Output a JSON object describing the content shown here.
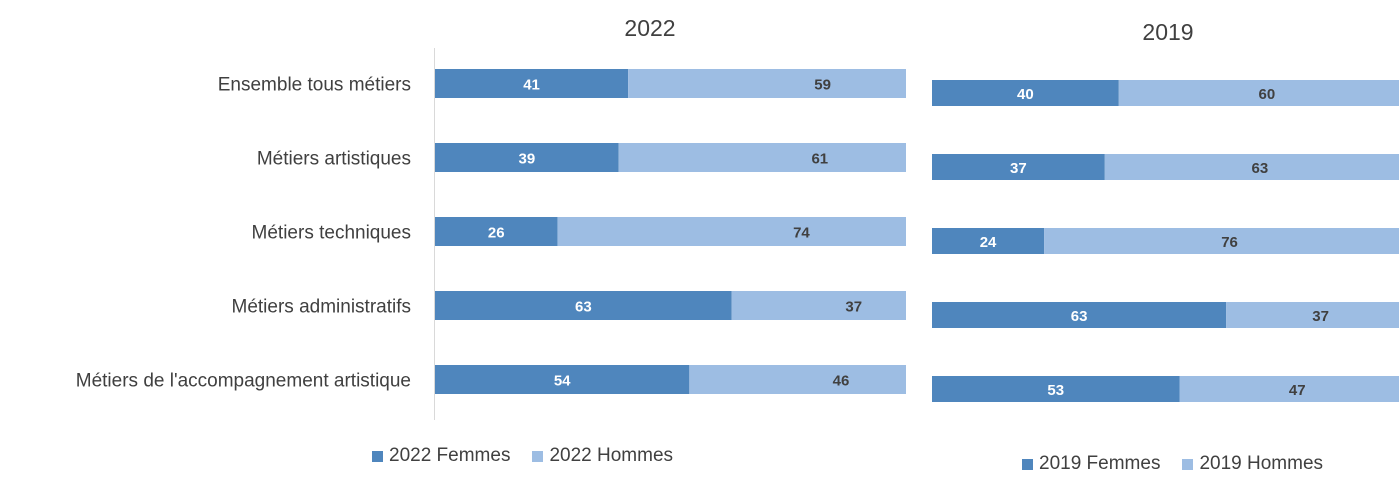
{
  "chart_data": [
    {
      "type": "bar",
      "orientation": "horizontal",
      "stacked": true,
      "title": "2022",
      "categories": [
        "Ensemble tous métiers",
        "Métiers artistiques",
        "Métiers techniques",
        "Métiers administratifs",
        "Métiers de l'accompagnement artistique"
      ],
      "series": [
        {
          "name": "2022 Femmes",
          "values": [
            41,
            39,
            26,
            63,
            54
          ],
          "color": "#4f86bd"
        },
        {
          "name": "2022 Hommes",
          "values": [
            59,
            61,
            74,
            37,
            46
          ],
          "color": "#9dbde3"
        }
      ],
      "xlim": [
        0,
        100
      ],
      "legend_position": "bottom",
      "grid": false
    },
    {
      "type": "bar",
      "orientation": "horizontal",
      "stacked": true,
      "title": "2019",
      "categories": [
        "Ensemble tous métiers",
        "Métiers artistiques",
        "Métiers techniques",
        "Métiers administratifs",
        "Métiers de l'accompagnement artistique"
      ],
      "series": [
        {
          "name": "2019 Femmes",
          "values": [
            40,
            37,
            24,
            63,
            53
          ],
          "color": "#4f86bd"
        },
        {
          "name": "2019 Hommes",
          "values": [
            60,
            63,
            76,
            37,
            47
          ],
          "color": "#9dbde3"
        }
      ],
      "xlim": [
        0,
        100
      ],
      "legend_position": "bottom",
      "grid": false
    }
  ]
}
